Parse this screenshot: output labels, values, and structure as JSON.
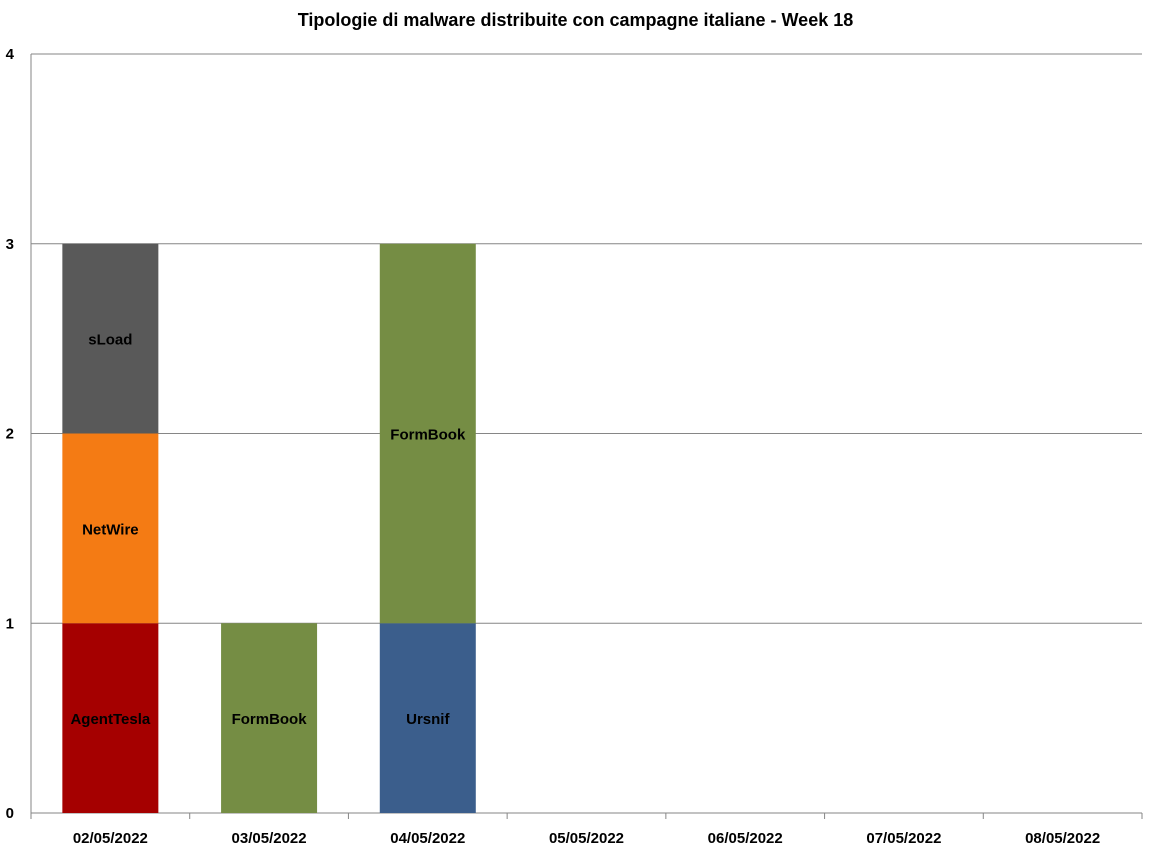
{
  "chart_data": {
    "type": "bar",
    "stacked": true,
    "title": "Tipologie  di malware distribuite con campagne italiane - Week 18",
    "xlabel": "",
    "ylabel": "",
    "ylim": [
      0,
      4
    ],
    "yticks": [
      "0",
      "1",
      "2",
      "3",
      "4"
    ],
    "grid": true,
    "categories": [
      "02/05/2022",
      "03/05/2022",
      "04/05/2022",
      "05/05/2022",
      "06/05/2022",
      "07/05/2022",
      "08/05/2022"
    ],
    "stacks": [
      {
        "category": "02/05/2022",
        "segments": [
          {
            "label": "AgentTesla",
            "value": 1,
            "color": "#a50000"
          },
          {
            "label": "NetWire",
            "value": 1,
            "color": "#f47b14"
          },
          {
            "label": "sLoad",
            "value": 1,
            "color": "#595959"
          }
        ]
      },
      {
        "category": "03/05/2022",
        "segments": [
          {
            "label": "FormBook",
            "value": 1,
            "color": "#758d44"
          }
        ]
      },
      {
        "category": "04/05/2022",
        "segments": [
          {
            "label": "Ursnif",
            "value": 1,
            "color": "#3b5e8c"
          },
          {
            "label": "FormBook",
            "value": 2,
            "color": "#758d44"
          }
        ]
      },
      {
        "category": "05/05/2022",
        "segments": []
      },
      {
        "category": "06/05/2022",
        "segments": []
      },
      {
        "category": "07/05/2022",
        "segments": []
      },
      {
        "category": "08/05/2022",
        "segments": []
      }
    ],
    "colors": {
      "grid": "#868686",
      "axis": "#868686",
      "background": "#ffffff"
    }
  }
}
